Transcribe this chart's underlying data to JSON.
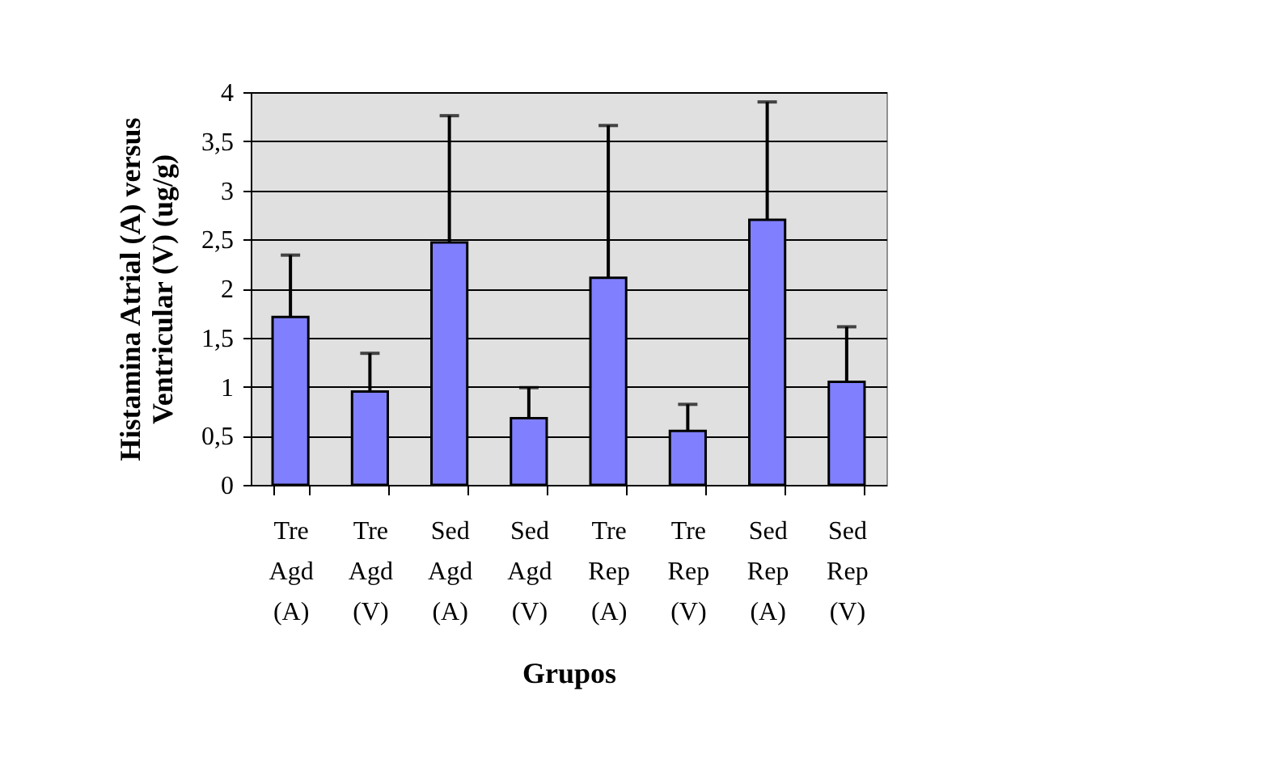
{
  "chart_data": {
    "type": "bar",
    "categories": [
      "Tre Agd (A)",
      "Tre Agd (V)",
      "Sed Agd (A)",
      "Sed Agd (V)",
      "Tre Rep (A)",
      "Tre Rep (V)",
      "Sed Rep (A)",
      "Sed Rep (V)"
    ],
    "values": [
      1.71,
      0.95,
      2.47,
      0.68,
      2.11,
      0.55,
      2.7,
      1.05
    ],
    "errors": [
      [
        1.71,
        2.34
      ],
      [
        0.95,
        1.34
      ],
      [
        2.47,
        3.76
      ],
      [
        0.68,
        0.99
      ],
      [
        2.11,
        3.66
      ],
      [
        0.55,
        0.82
      ],
      [
        2.7,
        3.9
      ],
      [
        1.05,
        1.61
      ]
    ],
    "color": "#8080ff",
    "xlabel": "Grupos",
    "ylabel": "Histamina Atrial (A) versus Ventricular (V) (ug/g)",
    "ylim": [
      0,
      4
    ],
    "yticks": [
      0,
      {
        "value": 0.5,
        "label": "0,5"
      },
      1,
      {
        "value": 1.5,
        "label": "1,5"
      },
      2,
      {
        "value": 2.5,
        "label": "2,5"
      },
      3,
      {
        "value": 3.5,
        "label": "3,5"
      },
      4
    ],
    "grid": "y"
  }
}
